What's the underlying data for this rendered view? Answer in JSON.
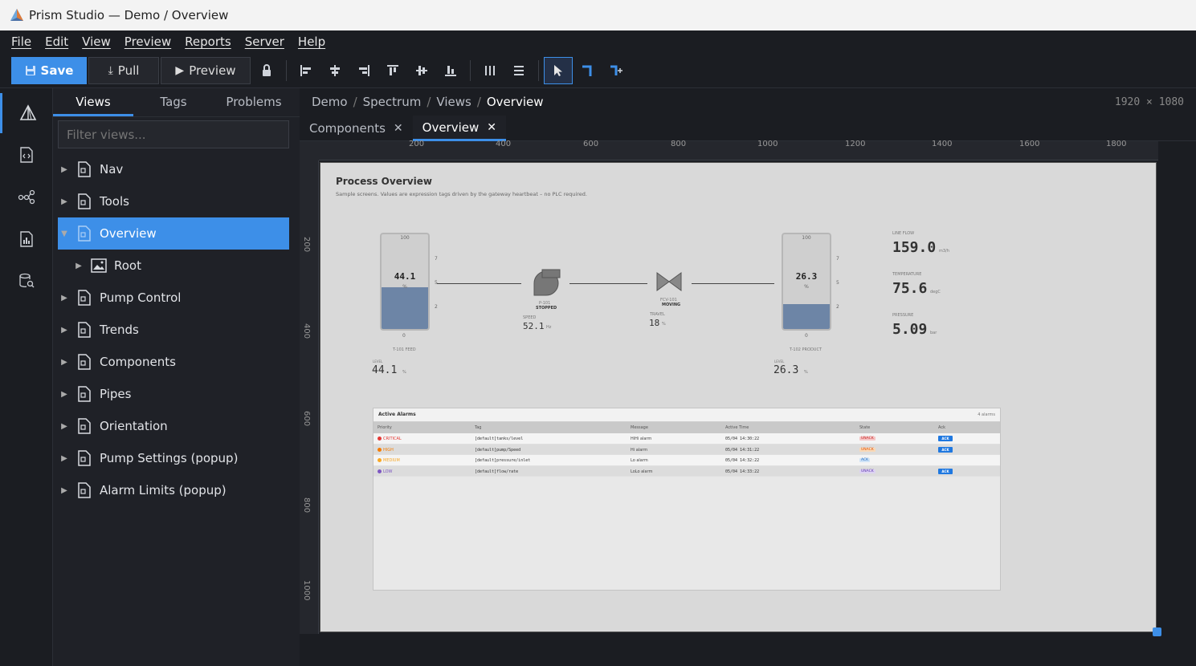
{
  "window": {
    "title": "Prism Studio — Demo / Overview"
  },
  "menu": [
    "File",
    "Edit",
    "View",
    "Preview",
    "Reports",
    "Server",
    "Help"
  ],
  "toolbar": {
    "save": "Save",
    "pull": "Pull",
    "preview": "Preview"
  },
  "panel": {
    "tabs": [
      "Views",
      "Tags",
      "Problems"
    ],
    "filter_placeholder": "Filter views...",
    "tree": [
      {
        "label": "Nav"
      },
      {
        "label": "Tools"
      },
      {
        "label": "Overview"
      },
      {
        "label": "Root"
      },
      {
        "label": "Pump Control"
      },
      {
        "label": "Trends"
      },
      {
        "label": "Components"
      },
      {
        "label": "Pipes"
      },
      {
        "label": "Orientation"
      },
      {
        "label": "Pump Settings (popup)"
      },
      {
        "label": "Alarm Limits (popup)"
      }
    ]
  },
  "breadcrumb": [
    "Demo",
    "Spectrum",
    "Views",
    "Overview"
  ],
  "dims": {
    "w": "1920",
    "x": "×",
    "h": "1080"
  },
  "doc_tabs": [
    "Components",
    "Overview"
  ],
  "ruler": {
    "top": [
      "200",
      "400",
      "600",
      "800",
      "1000",
      "1200",
      "1400",
      "1600",
      "1800"
    ],
    "left": [
      "200",
      "400",
      "600",
      "800",
      "1000"
    ]
  },
  "view": {
    "title": "Process Overview",
    "subtitle": "Sample screens. Values are expression tags driven by the gateway heartbeat – no PLC required.",
    "tank1": {
      "max": "100",
      "min": "0",
      "value": "44.1",
      "unit": "%",
      "name": "T-101 FEED",
      "level_label": "LEVEL",
      "level": "44.1",
      "level_unit": "%",
      "fill_pct": 44.1,
      "ticks": [
        "7",
        "5",
        "2"
      ]
    },
    "tank2": {
      "max": "100",
      "min": "0",
      "value": "26.3",
      "unit": "%",
      "name": "T-102 PRODUCT",
      "level_label": "LEVEL",
      "level": "26.3",
      "level_unit": "%",
      "fill_pct": 26.3,
      "ticks": [
        "7",
        "5",
        "2"
      ]
    },
    "pump": {
      "id": "P-101",
      "status": "STOPPED",
      "speed_label": "SPEED",
      "speed": "52.1",
      "speed_unit": "Hz"
    },
    "valve": {
      "id": "FCV-101",
      "status": "MOVING",
      "travel_label": "TRAVEL",
      "travel": "18",
      "travel_unit": "%"
    },
    "readouts": [
      {
        "label": "LINE FLOW",
        "value": "159.0",
        "unit": "m3/h"
      },
      {
        "label": "TEMPERATURE",
        "value": "75.6",
        "unit": "degC"
      },
      {
        "label": "PRESSURE",
        "value": "5.09",
        "unit": "bar"
      }
    ],
    "alarms": {
      "title": "Active Alarms",
      "count": "4 alarms",
      "columns": [
        "Priority",
        "Tag",
        "Message",
        "Active Time",
        "State",
        "Ack"
      ],
      "rows": [
        {
          "priority": "CRITICAL",
          "color": "#e53935",
          "tag": "[default]tanks/level",
          "message": "HiHi alarm",
          "time": "05/04 14:30:22",
          "state": "UNACK",
          "state_bg": "#f6c5c5",
          "state_fg": "#c62828",
          "ack": "ACK"
        },
        {
          "priority": "HIGH",
          "color": "#f57c00",
          "tag": "[default]pump/Speed",
          "message": "Hi alarm",
          "time": "05/04 14:31:22",
          "state": "UNACK",
          "state_bg": "#f8d9b8",
          "state_fg": "#e65100",
          "ack": "ACK"
        },
        {
          "priority": "MEDIUM",
          "color": "#f9a825",
          "tag": "[default]pressure/inlet",
          "message": "Lo alarm",
          "time": "05/04 14:32:22",
          "state": "ACK",
          "state_bg": "#cfe3f7",
          "state_fg": "#1565c0",
          "ack": ""
        },
        {
          "priority": "LOW",
          "color": "#7e57c2",
          "tag": "[default]flow/rate",
          "message": "LoLo alarm",
          "time": "05/04 14:33:22",
          "state": "UNACK",
          "state_bg": "#ddd3f2",
          "state_fg": "#5e35b1",
          "ack": "ACK"
        }
      ]
    }
  },
  "colors": {
    "accent": "#3d8fe8",
    "tank_fill": "#6d85a6"
  }
}
